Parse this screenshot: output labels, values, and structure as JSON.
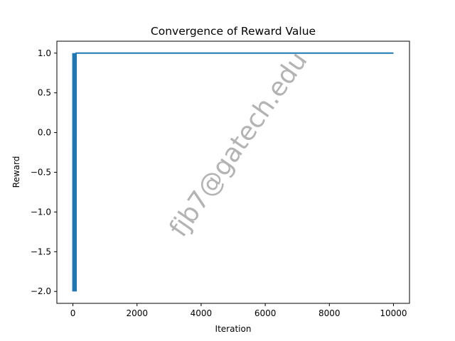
{
  "chart_data": {
    "type": "line",
    "title": "Convergence of Reward Value",
    "xlabel": "Iteration",
    "ylabel": "Reward",
    "xlim": [
      -500,
      10500
    ],
    "ylim": [
      -2.15,
      1.15
    ],
    "xticks": [
      0,
      2000,
      4000,
      6000,
      8000,
      10000
    ],
    "xtick_labels": [
      "0",
      "2000",
      "4000",
      "6000",
      "8000",
      "10000"
    ],
    "yticks": [
      1.0,
      0.5,
      0.0,
      -0.5,
      -1.0,
      -1.5,
      -2.0
    ],
    "ytick_labels": [
      "1.0",
      "0.5",
      "0.0",
      "−0.5",
      "−1.0",
      "−1.5",
      "−2.0"
    ],
    "grid": false,
    "legend": "none",
    "series": [
      {
        "color": "#1f77b4",
        "oscillation": {
          "x_range": [
            0,
            100
          ],
          "values": [
            1,
            -2
          ],
          "period": 1
        },
        "points": [
          [
            100,
            1
          ],
          [
            10000,
            1
          ]
        ]
      }
    ],
    "watermark": "fjb7@gatech.edu"
  }
}
